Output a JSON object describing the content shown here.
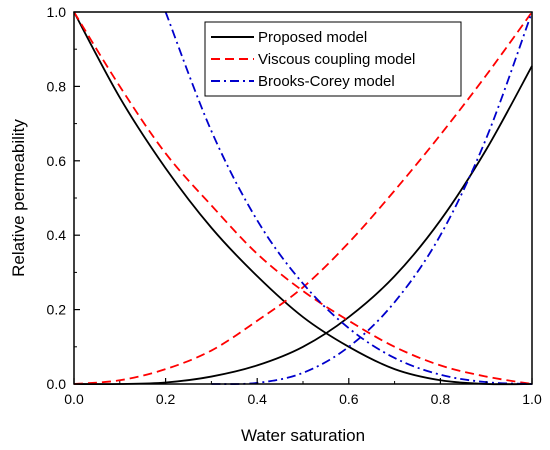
{
  "chart_data": {
    "type": "line",
    "xlabel": "Water saturation",
    "ylabel": "Relative permeability",
    "xlim": [
      0.0,
      1.0
    ],
    "ylim": [
      0.0,
      1.0
    ],
    "x_ticks": [
      "0.0",
      "0.2",
      "0.4",
      "0.6",
      "0.8",
      "1.0"
    ],
    "y_ticks": [
      "0.0",
      "0.2",
      "0.4",
      "0.6",
      "0.8",
      "1.0"
    ],
    "grid": false,
    "legend_position": "top-right",
    "legend": [
      {
        "label": "Proposed model",
        "color": "#000000",
        "style": "solid"
      },
      {
        "label": "Viscous coupling model",
        "color": "#ff0000",
        "style": "dashed"
      },
      {
        "label": "Brooks-Corey model",
        "color": "#0000cc",
        "style": "dashdot"
      }
    ],
    "series": [
      {
        "name": "Proposed model",
        "color": "#000000",
        "style": "solid",
        "curves": [
          {
            "x": [
              0.0,
              0.1,
              0.2,
              0.3,
              0.4,
              0.5,
              0.6,
              0.7,
              0.8,
              0.9,
              1.0
            ],
            "y": [
              1.0,
              0.77,
              0.58,
              0.42,
              0.29,
              0.18,
              0.1,
              0.04,
              0.01,
              0.0,
              0.0
            ]
          },
          {
            "x": [
              0.0,
              0.1,
              0.2,
              0.3,
              0.4,
              0.5,
              0.6,
              0.7,
              0.8,
              0.9,
              1.0
            ],
            "y": [
              0.0,
              0.0,
              0.004,
              0.02,
              0.05,
              0.1,
              0.18,
              0.29,
              0.44,
              0.63,
              0.855
            ]
          }
        ]
      },
      {
        "name": "Viscous coupling model",
        "color": "#ff0000",
        "style": "dashed",
        "curves": [
          {
            "x": [
              0.0,
              0.1,
              0.2,
              0.3,
              0.4,
              0.5,
              0.6,
              0.7,
              0.8,
              0.9,
              1.0
            ],
            "y": [
              1.0,
              0.8,
              0.62,
              0.48,
              0.35,
              0.25,
              0.17,
              0.1,
              0.05,
              0.02,
              0.0
            ]
          },
          {
            "x": [
              0.0,
              0.1,
              0.2,
              0.3,
              0.4,
              0.5,
              0.6,
              0.7,
              0.8,
              0.9,
              1.0
            ],
            "y": [
              0.0,
              0.01,
              0.04,
              0.09,
              0.17,
              0.26,
              0.38,
              0.52,
              0.67,
              0.83,
              1.0
            ]
          }
        ]
      },
      {
        "name": "Brooks-Corey model",
        "color": "#0000cc",
        "style": "dashdot",
        "curves": [
          {
            "x": [
              0.2,
              0.3,
              0.4,
              0.5,
              0.6,
              0.7,
              0.8,
              0.9,
              1.0
            ],
            "y": [
              1.0,
              0.68,
              0.44,
              0.27,
              0.15,
              0.07,
              0.025,
              0.005,
              0.0
            ]
          },
          {
            "x": [
              0.3,
              0.4,
              0.5,
              0.6,
              0.7,
              0.8,
              0.9,
              1.0
            ],
            "y": [
              0.0,
              0.003,
              0.03,
              0.1,
              0.22,
              0.4,
              0.66,
              1.0
            ]
          }
        ]
      }
    ]
  }
}
